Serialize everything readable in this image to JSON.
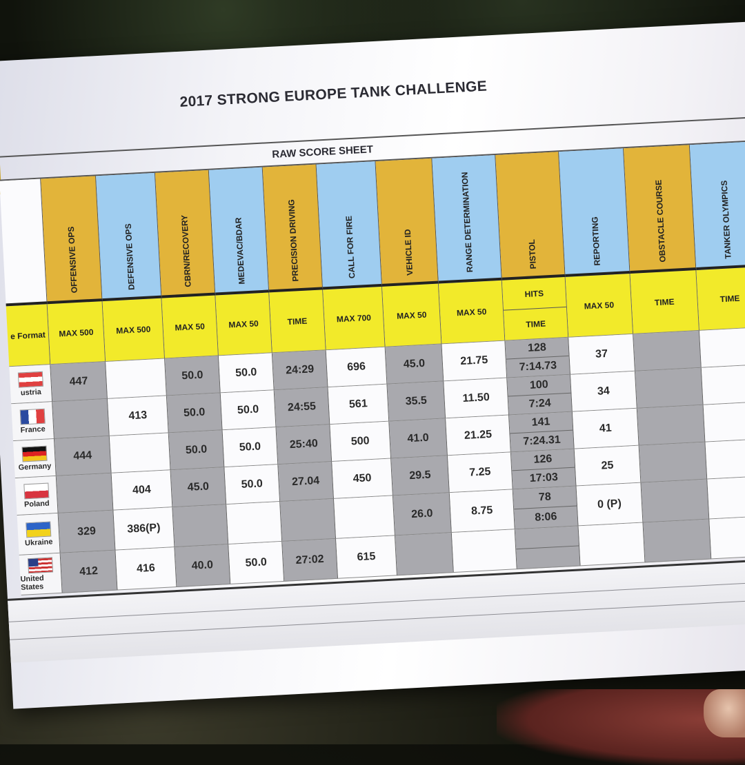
{
  "title": "2017 STRONG EUROPE TANK CHALLENGE",
  "subtitle": "RAW SCORE SHEET",
  "header_label": "e Format",
  "events": [
    {
      "name": "OFFENSIVE OPS",
      "sub": "MAX 500",
      "color": "gold"
    },
    {
      "name": "DEFENSIVE OPS",
      "sub": "MAX 500",
      "color": "blue"
    },
    {
      "name": "CBRN/RECOVERY",
      "sub": "MAX 50",
      "color": "gold"
    },
    {
      "name": "MEDEVAC/BDAR",
      "sub": "MAX 50",
      "color": "blue"
    },
    {
      "name": "PRECISION DRIVING",
      "sub": "TIME",
      "color": "gold"
    },
    {
      "name": "CALL FOR FIRE",
      "sub": "MAX 700",
      "color": "blue"
    },
    {
      "name": "VEHICLE ID",
      "sub": "MAX 50",
      "color": "gold"
    },
    {
      "name": "RANGE DETERMINATION",
      "sub": "MAX 50",
      "color": "blue"
    },
    {
      "name": "PISTOL",
      "sub_top": "HITS",
      "sub_bottom": "TIME",
      "color": "gold"
    },
    {
      "name": "REPORTING",
      "sub": "MAX 50",
      "color": "blue"
    },
    {
      "name": "OBSTACLE COURSE",
      "sub": "TIME",
      "color": "gold"
    },
    {
      "name": "TANKER OLYMPICS",
      "sub": "TIME",
      "color": "blue"
    }
  ],
  "teams": [
    {
      "country": "ustria",
      "flag": "at",
      "scores": [
        "447",
        "",
        "50.0",
        "50.0",
        "24:29",
        "696",
        "45.0",
        "21.75",
        "128",
        "7:14.73",
        "37",
        "",
        ""
      ]
    },
    {
      "country": "France",
      "flag": "fr",
      "scores": [
        "",
        "413",
        "50.0",
        "50.0",
        "24:55",
        "561",
        "35.5",
        "11.50",
        "100",
        "7:24",
        "34",
        "",
        ""
      ]
    },
    {
      "country": "Germany",
      "flag": "de",
      "scores": [
        "444",
        "",
        "50.0",
        "50.0",
        "25:40",
        "500",
        "41.0",
        "21.25",
        "141",
        "7:24.31",
        "41",
        "",
        ""
      ]
    },
    {
      "country": "Poland",
      "flag": "pl",
      "scores": [
        "",
        "404",
        "45.0",
        "50.0",
        "27.04",
        "450",
        "29.5",
        "7.25",
        "126",
        "17:03",
        "25",
        "",
        ""
      ]
    },
    {
      "country": "Ukraine",
      "flag": "ua",
      "scores": [
        "329",
        "386(P)",
        "",
        "",
        "",
        "",
        "26.0",
        "8.75",
        "78",
        "8:06",
        "0 (P)",
        "",
        ""
      ]
    },
    {
      "country": "United States",
      "flag": "us",
      "scores": [
        "412",
        "416",
        "40.0",
        "50.0",
        "27:02",
        "615",
        "",
        "",
        "",
        "",
        "",
        "",
        ""
      ]
    }
  ],
  "colors": {
    "gold": "#e2b43a",
    "blue": "#9fcdf0",
    "yellow": "#f2ea2a",
    "grey_cell": "#a9a9ae"
  }
}
